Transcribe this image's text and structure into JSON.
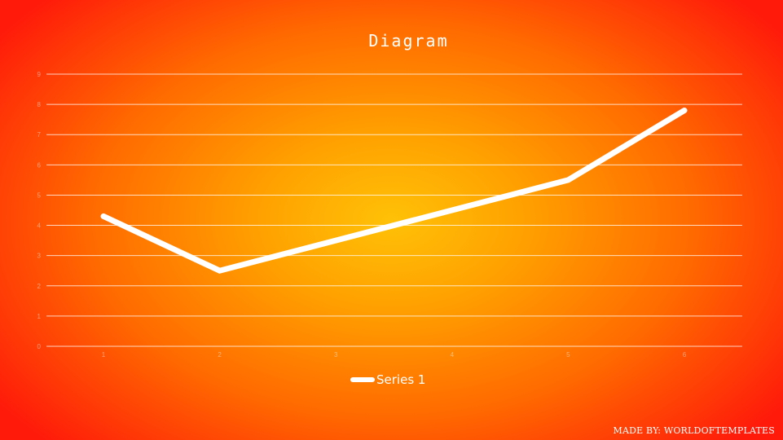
{
  "chart_data": {
    "type": "line",
    "title": "Diagram",
    "xlabel": "",
    "ylabel": "",
    "categories": [
      "1",
      "2",
      "3",
      "4",
      "5",
      "6"
    ],
    "ylim": [
      0,
      9
    ],
    "y_ticks": [
      0,
      1,
      2,
      3,
      4,
      5,
      6,
      7,
      8,
      9
    ],
    "grid": true,
    "legend_position": "bottom",
    "series": [
      {
        "name": "Series 1",
        "values": [
          4.3,
          2.5,
          3.5,
          4.5,
          5.5,
          7.8
        ],
        "color": "#ffffff"
      }
    ]
  },
  "footer": {
    "credit": "MADE BY: WORLDOFTEMPLATES"
  }
}
